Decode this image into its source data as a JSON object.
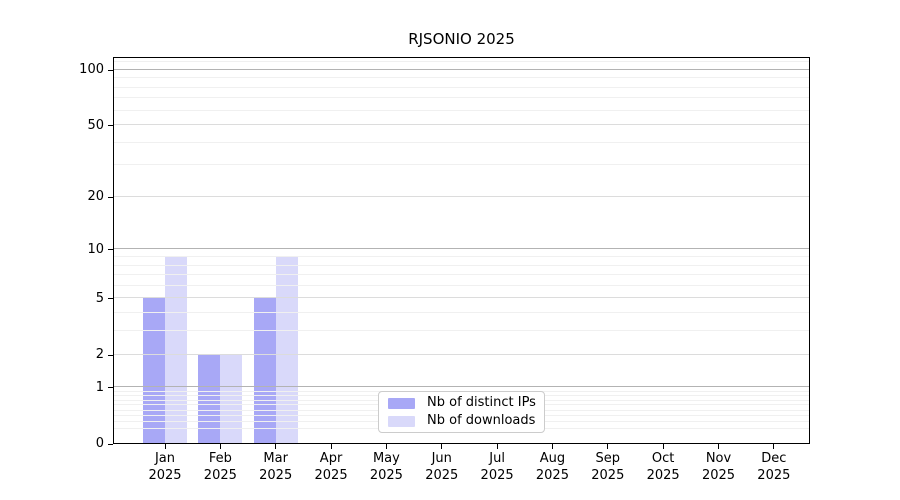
{
  "title": "RJSONIO 2025",
  "chart_data": {
    "type": "bar",
    "title": "RJSONIO 2025",
    "categories": [
      "Jan",
      "Feb",
      "Mar",
      "Apr",
      "May",
      "Jun",
      "Jul",
      "Aug",
      "Sep",
      "Oct",
      "Nov",
      "Dec"
    ],
    "year": "2025",
    "series": [
      {
        "name": "Nb of distinct IPs",
        "color": "#a8a8f6",
        "values": [
          5,
          2,
          5,
          0,
          0,
          0,
          0,
          0,
          0,
          0,
          0,
          0
        ]
      },
      {
        "name": "Nb of downloads",
        "color": "#d9d9fa",
        "values": [
          9,
          2,
          9,
          0,
          0,
          0,
          0,
          0,
          0,
          0,
          0,
          0
        ]
      }
    ],
    "yscale": "log1p",
    "xlabel": "",
    "ylabel": "",
    "y_ticks": [
      0,
      1,
      2,
      5,
      10,
      20,
      50,
      100
    ],
    "y_major_grid": [
      1,
      10,
      100
    ],
    "y_mid_grid": [
      2,
      5,
      20,
      50
    ],
    "y_minor_ticks": [
      0.2,
      0.3,
      0.4,
      0.5,
      0.6,
      0.7,
      0.8,
      0.9,
      3,
      4,
      6,
      7,
      8,
      9,
      30,
      40,
      60,
      70,
      80,
      90,
      110
    ],
    "ylim": [
      0,
      118
    ],
    "grid": "on",
    "legend_position": "inside-bottom-center"
  },
  "legend": {
    "items": [
      {
        "label": "Nb of distinct IPs",
        "color": "#a8a8f6"
      },
      {
        "label": "Nb of downloads",
        "color": "#d9d9fa"
      }
    ]
  }
}
